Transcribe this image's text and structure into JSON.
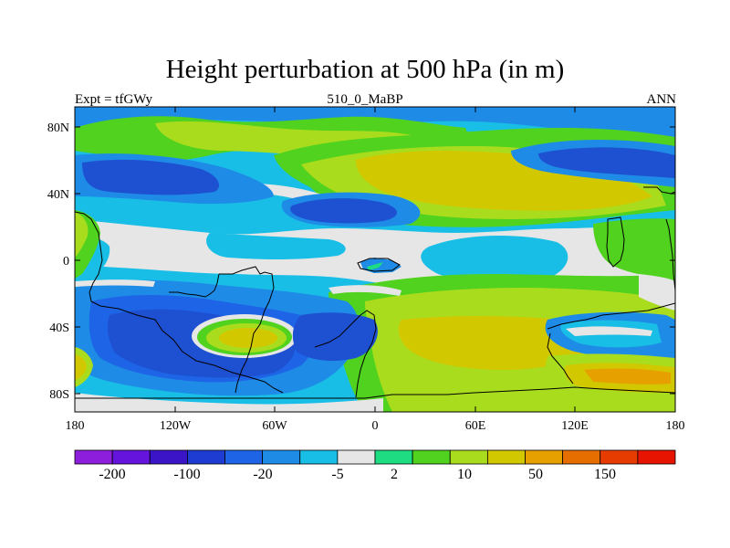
{
  "title": "Height perturbation at 500 hPa (in m)",
  "subtitle_left": "Expt = tfGWy",
  "subtitle_center": "510_0_MaBP",
  "subtitle_right": "ANN",
  "axes": {
    "lat_labels": [
      "80N",
      "40N",
      "0",
      "40S",
      "80S"
    ],
    "lon_labels": [
      "180",
      "120W",
      "60W",
      "0",
      "60E",
      "120E",
      "180"
    ]
  },
  "colors": {
    "deep_blue": "#1e50d2",
    "mid_blue": "#1e8ce6",
    "light_blue": "#19bee6",
    "neutral": "#e6e6e6",
    "light_green": "#1edc82",
    "green": "#50d21e",
    "yellow_green": "#aadc1e",
    "olive_yellow": "#d2c800",
    "orange_yellow": "#e6a000"
  },
  "colorbar": {
    "colors": [
      "#8c1edc",
      "#6414dc",
      "#3c14c8",
      "#1e3cd2",
      "#1e64e6",
      "#1e8ce6",
      "#19bee6",
      "#e6e6e6",
      "#1edc82",
      "#50d21e",
      "#aadc1e",
      "#d2c800",
      "#e6a000",
      "#e66e00",
      "#e63c00",
      "#e61400"
    ],
    "labels": [
      "-200",
      "-100",
      "-20",
      "-5",
      "2",
      "10",
      "50",
      "150"
    ]
  }
}
